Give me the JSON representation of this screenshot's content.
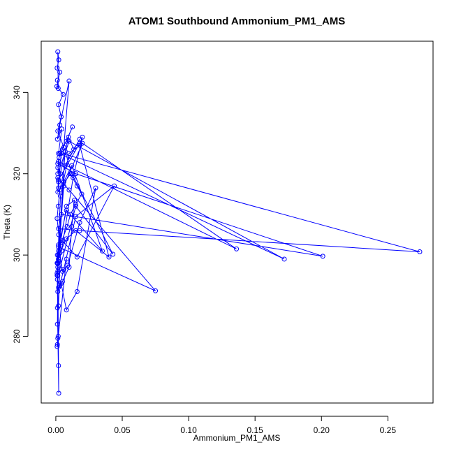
{
  "chart_data": {
    "type": "line",
    "title": "ATOM1 Southbound Ammonium_PM1_AMS",
    "xlabel": "Ammonium_PM1_AMS",
    "ylabel": "Theta (K)",
    "xlim": [
      -0.011,
      0.284
    ],
    "ylim": [
      263.6,
      352.6
    ],
    "x_ticks": [
      0,
      0.05,
      0.1,
      0.15,
      0.2,
      0.25
    ],
    "x_tick_labels": [
      "0.00",
      "0.05",
      "0.10",
      "0.15",
      "0.20",
      "0.25"
    ],
    "y_ticks": [
      280,
      300,
      320,
      340
    ],
    "y_tick_labels": [
      "280",
      "300",
      "320",
      "340"
    ],
    "markers": true,
    "grid": false,
    "color": "#0000ff",
    "x": [
      0.0012,
      0.0018,
      0.0015,
      0.0022,
      0.001,
      0.003,
      0.0008,
      0.0055,
      0.002,
      0.004,
      0.0015,
      0.006,
      0.01,
      0.003,
      0.0012,
      0.0045,
      0.002,
      0.008,
      0.0125,
      0.005,
      0.0025,
      0.0015,
      0.0035,
      0.002,
      0.0095,
      0.0135,
      0.018,
      0.007,
      0.003,
      0.0018,
      0.001,
      0.0022,
      0.0043,
      0.013,
      0.02,
      0.018,
      0.002,
      0.0015,
      0.011,
      0.016,
      0.0195,
      0.015,
      0.011,
      0.0085,
      0.004,
      0.002,
      0.0018,
      0.0015,
      0.0012,
      0.003,
      0.006,
      0.015,
      0.044,
      0.016,
      0.005,
      0.002,
      0.0012,
      0.001,
      0.008,
      0.014,
      0.012,
      0.01,
      0.005,
      0.002,
      0.0015,
      0.004,
      0.008,
      0.016,
      0.03,
      0.018,
      0.009,
      0.005,
      0.003,
      0.002,
      0.0015,
      0.001,
      0.0035,
      0.01,
      0.018,
      0.04,
      0.015,
      0.008,
      0.003,
      0.002,
      0.0015,
      0.006,
      0.02,
      0.136,
      0.002,
      0.0015,
      0.01,
      0.172,
      0.003,
      0.0015,
      0.015,
      0.201,
      0.004,
      0.002,
      0.018,
      0.274,
      0.004,
      0.002,
      0.0015,
      0.01,
      0.075,
      0.002,
      0.008,
      0.035,
      0.012,
      0.006,
      0.002,
      0.0015,
      0.0012,
      0.002,
      0.003,
      0.015,
      0.043,
      0.012,
      0.007,
      0.002,
      0.001,
      0.0018,
      0.008,
      0.0012,
      0.001,
      0.0015,
      0.002,
      0.0012,
      0.0022,
      0.0015
    ],
    "y": [
      343.0,
      341.0,
      350.0,
      348.0,
      346.0,
      345.0,
      341.5,
      339.5,
      337.0,
      334.0,
      330.5,
      326.5,
      342.8,
      332.0,
      328.5,
      331.0,
      325.0,
      328.0,
      331.5,
      326.0,
      324.0,
      321.5,
      320.0,
      318.0,
      329.0,
      326.0,
      328.5,
      322.0,
      316.0,
      312.0,
      309.0,
      305.0,
      301.0,
      319.0,
      329.0,
      327.5,
      318.5,
      315.5,
      320.0,
      317.0,
      315.0,
      312.5,
      310.0,
      307.0,
      303.0,
      300.0,
      298.0,
      296.0,
      294.0,
      292.5,
      296.5,
      309.5,
      317.0,
      299.5,
      303.5,
      302.5,
      300.0,
      298.0,
      312.0,
      313.5,
      307.0,
      297.0,
      293.5,
      292.0,
      291.0,
      293.0,
      286.5,
      291.0,
      316.5,
      308.0,
      297.5,
      296.0,
      300.5,
      298.5,
      297.0,
      295.5,
      314.5,
      325.0,
      327.0,
      299.5,
      306.0,
      304.0,
      300.5,
      299.0,
      298.0,
      317.0,
      327.5,
      301.5,
      323.0,
      320.0,
      328.0,
      299.0,
      325.0,
      322.5,
      320.0,
      299.7,
      310.0,
      306.5,
      306.0,
      300.8,
      325.0,
      316.5,
      319.0,
      316.0,
      291.2,
      302.0,
      311.0,
      301.0,
      322.0,
      318.0,
      299.0,
      295.0,
      283.0,
      287.5,
      296.5,
      312.0,
      300.2,
      320.0,
      325.5,
      301.0,
      295.0,
      280.0,
      299.0,
      278.0,
      277.5,
      279.5,
      272.8,
      287.0,
      266.0,
      298.0
    ]
  }
}
